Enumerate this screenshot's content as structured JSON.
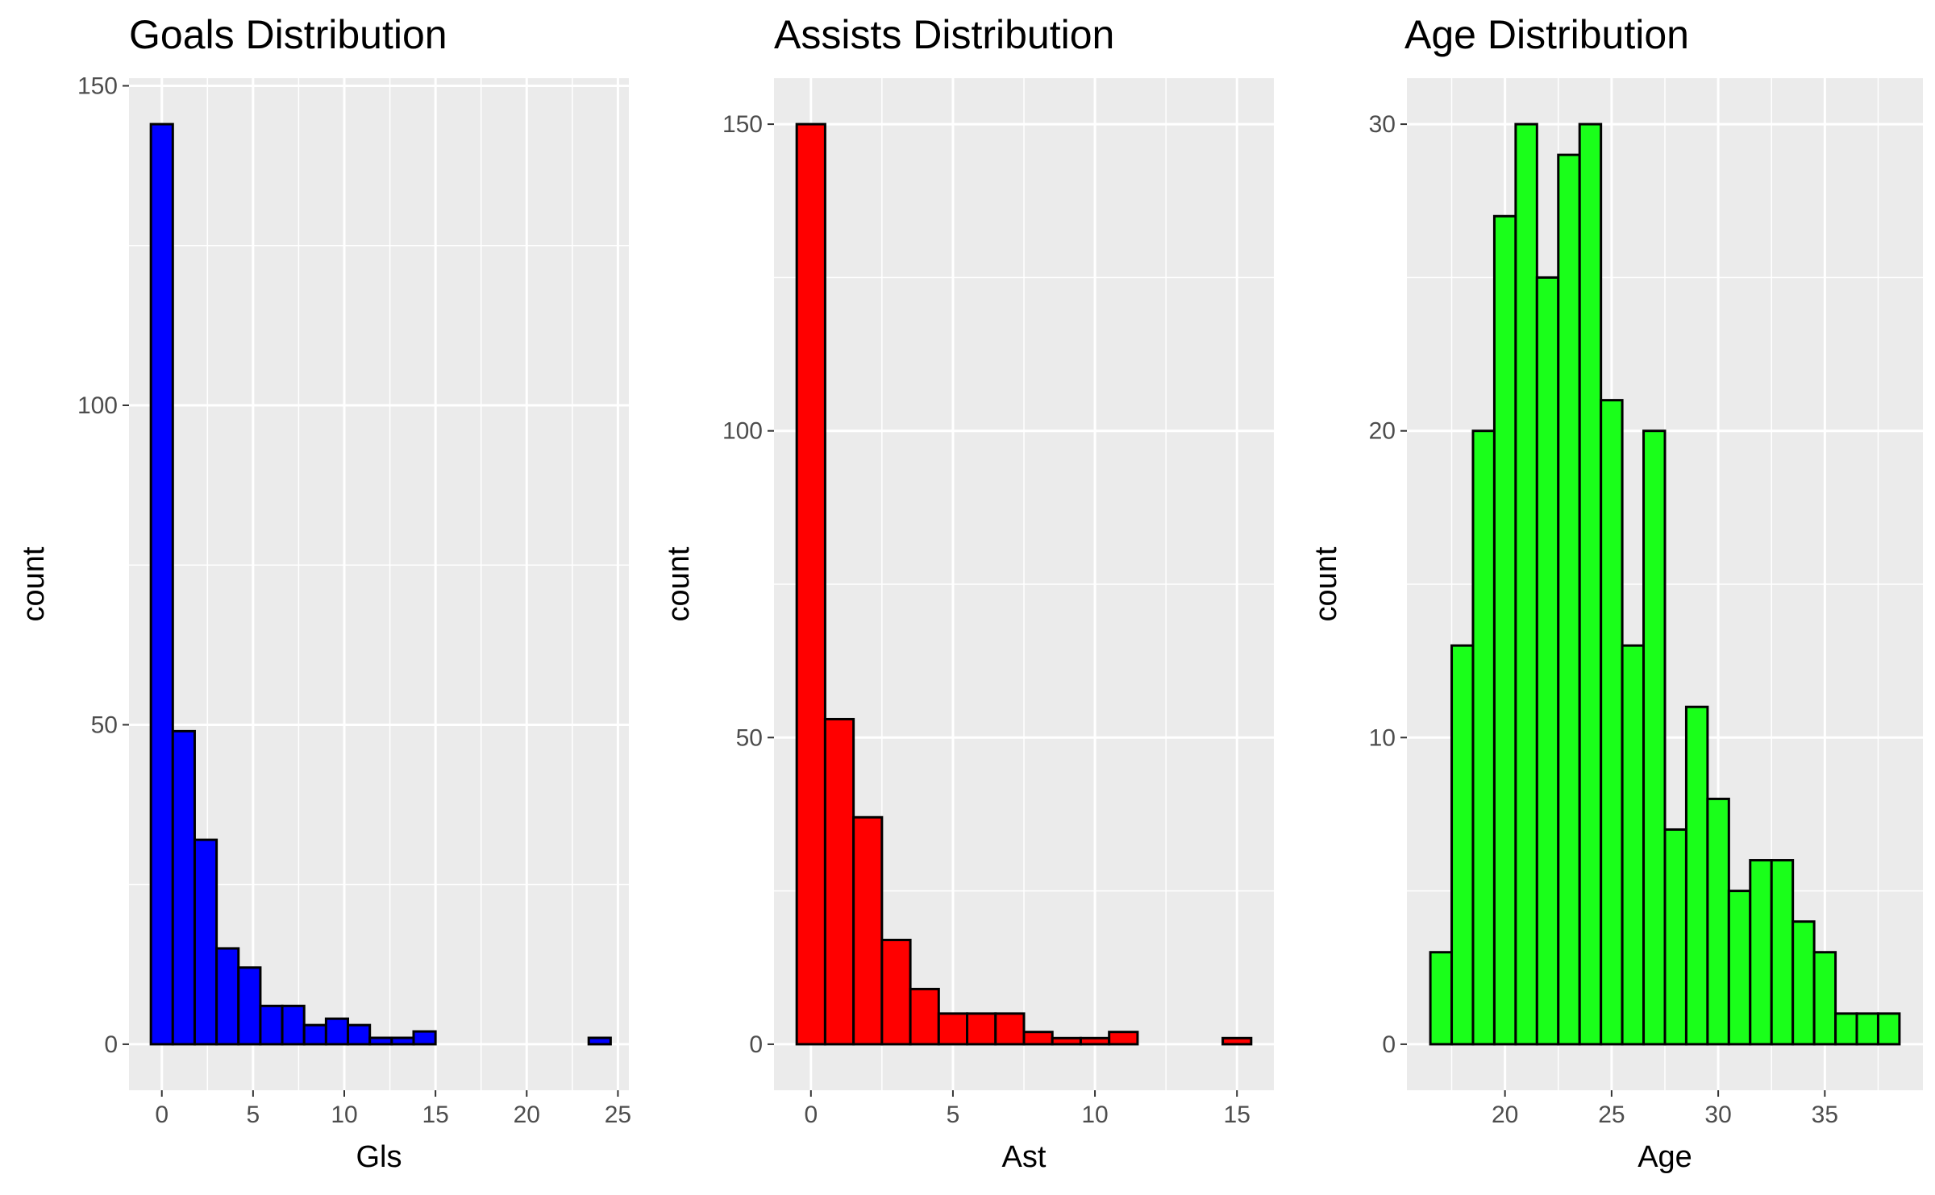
{
  "chart_data": [
    {
      "type": "histogram",
      "title": "Goals Distribution",
      "xlabel": "Gls",
      "ylabel": "count",
      "fill_color": "#0000ff",
      "bin_width": 1.2,
      "bins_x_start": [
        -0.6,
        0.6,
        1.8,
        3.0,
        4.2,
        5.4,
        6.6,
        7.8,
        9.0,
        10.2,
        11.4,
        12.6,
        13.8,
        15.0,
        16.2,
        17.4,
        18.6,
        19.8,
        21.0,
        22.2,
        23.4
      ],
      "values": [
        144,
        49,
        32,
        15,
        12,
        6,
        6,
        3,
        4,
        3,
        1,
        1,
        2,
        0,
        0,
        0,
        0,
        0,
        0,
        0,
        1
      ],
      "xlim": [
        -1.8,
        25.6
      ],
      "ylim": [
        -7.2,
        151.2
      ],
      "xticks": [
        0,
        5,
        10,
        15,
        20,
        25
      ],
      "yticks": [
        0,
        50,
        100,
        150
      ],
      "grid": true
    },
    {
      "type": "histogram",
      "title": "Assists Distribution",
      "xlabel": "Ast",
      "ylabel": "count",
      "fill_color": "#ff0000",
      "bin_width": 1.0,
      "bins_x_start": [
        -0.5,
        0.5,
        1.5,
        2.5,
        3.5,
        4.5,
        5.5,
        6.5,
        7.5,
        8.5,
        9.5,
        10.5,
        11.5,
        12.5,
        13.5,
        14.5
      ],
      "values": [
        150,
        53,
        37,
        17,
        9,
        5,
        5,
        5,
        2,
        1,
        1,
        2,
        0,
        0,
        0,
        1
      ],
      "xlim": [
        -1.3,
        16.3
      ],
      "ylim": [
        -7.5,
        157.5
      ],
      "xticks": [
        0,
        5,
        10,
        15
      ],
      "yticks": [
        0,
        50,
        100,
        150
      ],
      "grid": true
    },
    {
      "type": "histogram",
      "title": "Age Distribution",
      "xlabel": "Age",
      "ylabel": "count",
      "fill_color": "#1aff1a",
      "bin_width": 1.0,
      "bins_x_start": [
        16.5,
        17.5,
        18.5,
        19.5,
        20.5,
        21.5,
        22.5,
        23.5,
        24.5,
        25.5,
        26.5,
        27.5,
        28.5,
        29.5,
        30.5,
        31.5,
        32.5,
        33.5,
        34.5,
        35.5,
        36.5,
        37.5
      ],
      "values": [
        3,
        13,
        20,
        27,
        30,
        25,
        29,
        30,
        21,
        13,
        20,
        7,
        11,
        8,
        5,
        6,
        6,
        4,
        3,
        1,
        1,
        1
      ],
      "xlim": [
        15.4,
        39.6
      ],
      "ylim": [
        -1.5,
        31.5
      ],
      "xticks": [
        20,
        25,
        30,
        35
      ],
      "yticks": [
        0,
        10,
        20,
        30
      ],
      "grid": true
    }
  ]
}
